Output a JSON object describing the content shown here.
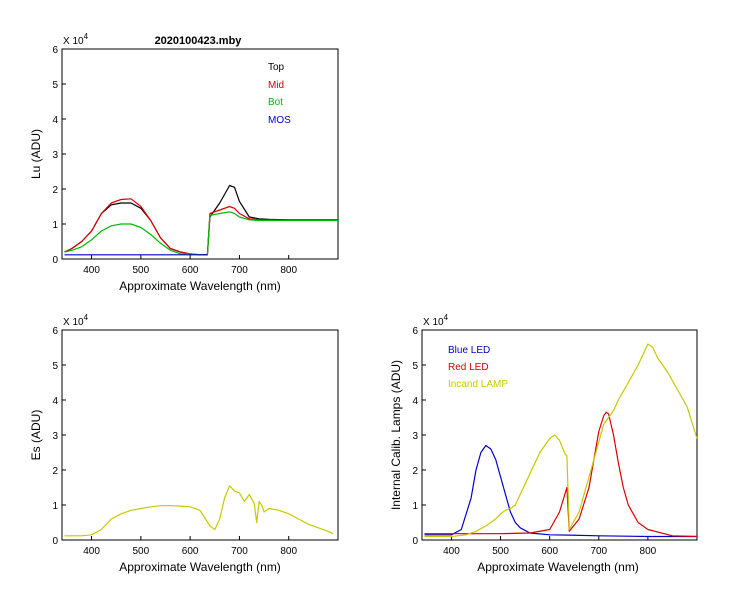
{
  "figure_title": "2020100423.mby",
  "chart_data": [
    {
      "id": "lu",
      "type": "line",
      "title": "2020100423.mby",
      "xlabel": "Approximate Wavelength (nm)",
      "ylabel": "Lu (ADU)",
      "exponent_label": "X 10",
      "exponent_sup": "4",
      "xlim": [
        340,
        900
      ],
      "ylim": [
        0,
        6
      ],
      "xticks": [
        400,
        500,
        600,
        700,
        800
      ],
      "yticks": [
        0,
        1,
        2,
        3,
        4,
        5,
        6
      ],
      "legend_position": "top-right",
      "series": [
        {
          "name": "Top",
          "color": "#000000",
          "x": [
            345,
            360,
            380,
            400,
            420,
            440,
            460,
            480,
            500,
            520,
            540,
            560,
            580,
            600,
            620,
            635,
            640,
            660,
            680,
            690,
            700,
            720,
            740,
            760,
            800,
            850,
            900
          ],
          "y": [
            0.2,
            0.3,
            0.5,
            0.8,
            1.3,
            1.55,
            1.6,
            1.6,
            1.45,
            1.1,
            0.6,
            0.3,
            0.2,
            0.15,
            0.12,
            0.12,
            1.2,
            1.6,
            2.1,
            2.05,
            1.65,
            1.2,
            1.15,
            1.13,
            1.12,
            1.12,
            1.12
          ]
        },
        {
          "name": "Mid",
          "color": "#dd0000",
          "x": [
            345,
            360,
            380,
            400,
            420,
            440,
            460,
            480,
            500,
            520,
            540,
            560,
            580,
            600,
            620,
            635,
            640,
            660,
            680,
            690,
            700,
            720,
            740,
            760,
            800,
            850,
            900
          ],
          "y": [
            0.2,
            0.3,
            0.5,
            0.8,
            1.3,
            1.6,
            1.7,
            1.72,
            1.5,
            1.1,
            0.6,
            0.3,
            0.2,
            0.15,
            0.12,
            0.12,
            1.3,
            1.4,
            1.5,
            1.45,
            1.3,
            1.15,
            1.12,
            1.12,
            1.12,
            1.12,
            1.12
          ]
        },
        {
          "name": "Bot",
          "color": "#00bb00",
          "x": [
            345,
            360,
            380,
            400,
            420,
            440,
            460,
            480,
            500,
            520,
            540,
            560,
            580,
            600,
            620,
            635,
            640,
            660,
            680,
            690,
            700,
            720,
            740,
            760,
            800,
            850,
            900
          ],
          "y": [
            0.2,
            0.25,
            0.35,
            0.55,
            0.8,
            0.95,
            1.0,
            1.0,
            0.9,
            0.7,
            0.45,
            0.25,
            0.15,
            0.15,
            0.12,
            0.12,
            1.25,
            1.3,
            1.35,
            1.3,
            1.2,
            1.12,
            1.1,
            1.1,
            1.1,
            1.1,
            1.1
          ]
        },
        {
          "name": "MOS",
          "color": "#0000cc",
          "x": [
            345,
            600,
            635
          ],
          "y": [
            0.12,
            0.12,
            0.12
          ]
        }
      ]
    },
    {
      "id": "es",
      "type": "line",
      "title": "",
      "xlabel": "Approximate Wavelength (nm)",
      "ylabel": "Es  (ADU)",
      "exponent_label": "X 10",
      "exponent_sup": "4",
      "xlim": [
        340,
        900
      ],
      "ylim": [
        0,
        6
      ],
      "xticks": [
        400,
        500,
        600,
        700,
        800
      ],
      "yticks": [
        0,
        1,
        2,
        3,
        4,
        5,
        6
      ],
      "series": [
        {
          "name": "Es",
          "color": "#c8c800",
          "x": [
            345,
            380,
            400,
            420,
            440,
            460,
            480,
            500,
            520,
            540,
            560,
            580,
            600,
            620,
            640,
            650,
            660,
            670,
            680,
            690,
            700,
            710,
            720,
            730,
            735,
            740,
            745,
            750,
            760,
            780,
            800,
            820,
            840,
            860,
            880,
            890
          ],
          "y": [
            0.12,
            0.12,
            0.15,
            0.3,
            0.6,
            0.75,
            0.85,
            0.9,
            0.95,
            0.98,
            0.98,
            0.97,
            0.95,
            0.85,
            0.4,
            0.3,
            0.6,
            1.2,
            1.55,
            1.4,
            1.35,
            1.1,
            1.3,
            1.05,
            0.5,
            1.1,
            1.0,
            0.8,
            0.9,
            0.85,
            0.75,
            0.6,
            0.45,
            0.35,
            0.25,
            0.18
          ]
        }
      ]
    },
    {
      "id": "lamps",
      "type": "line",
      "title": "",
      "xlabel": "Approximate Wavelength (nm)",
      "ylabel": "Internal Calib. Lamps  (ADU)",
      "exponent_label": "X 10",
      "exponent_sup": "4",
      "xlim": [
        340,
        900
      ],
      "ylim": [
        0,
        6
      ],
      "xticks": [
        400,
        500,
        600,
        700,
        800
      ],
      "yticks": [
        0,
        1,
        2,
        3,
        4,
        5,
        6
      ],
      "legend_position": "top-left",
      "series": [
        {
          "name": "Blue LED",
          "color": "#0000cc",
          "x": [
            345,
            400,
            420,
            440,
            450,
            460,
            470,
            480,
            490,
            500,
            510,
            520,
            530,
            540,
            560,
            600,
            640,
            700,
            800,
            900
          ],
          "y": [
            0.15,
            0.15,
            0.3,
            1.2,
            2.0,
            2.5,
            2.7,
            2.6,
            2.3,
            1.8,
            1.3,
            0.8,
            0.5,
            0.35,
            0.2,
            0.15,
            0.14,
            0.12,
            0.1,
            0.1
          ]
        },
        {
          "name": "Red LED",
          "color": "#dd0000",
          "x": [
            345,
            500,
            560,
            600,
            620,
            635,
            640,
            660,
            680,
            690,
            700,
            710,
            715,
            720,
            730,
            740,
            750,
            760,
            780,
            800,
            850,
            900
          ],
          "y": [
            0.18,
            0.18,
            0.2,
            0.3,
            0.8,
            1.5,
            0.25,
            0.6,
            1.5,
            2.3,
            3.1,
            3.55,
            3.65,
            3.6,
            3.0,
            2.2,
            1.5,
            1.0,
            0.5,
            0.3,
            0.12,
            0.1
          ]
        },
        {
          "name": "Incand LAMP",
          "color": "#c8c800",
          "x": [
            345,
            400,
            430,
            450,
            470,
            490,
            500,
            510,
            520,
            530,
            540,
            560,
            580,
            600,
            610,
            620,
            630,
            635,
            640,
            660,
            680,
            700,
            710,
            720,
            730,
            740,
            760,
            780,
            790,
            800,
            810,
            820,
            830,
            840,
            860,
            880,
            900
          ],
          "y": [
            0.1,
            0.1,
            0.15,
            0.25,
            0.4,
            0.6,
            0.75,
            0.85,
            0.9,
            1.0,
            1.3,
            1.9,
            2.5,
            2.9,
            3.0,
            2.85,
            2.5,
            2.4,
            0.3,
            0.8,
            1.8,
            2.8,
            3.3,
            3.5,
            3.7,
            4.0,
            4.5,
            5.0,
            5.3,
            5.6,
            5.5,
            5.2,
            5.0,
            4.8,
            4.3,
            3.8,
            2.9
          ]
        }
      ]
    }
  ]
}
